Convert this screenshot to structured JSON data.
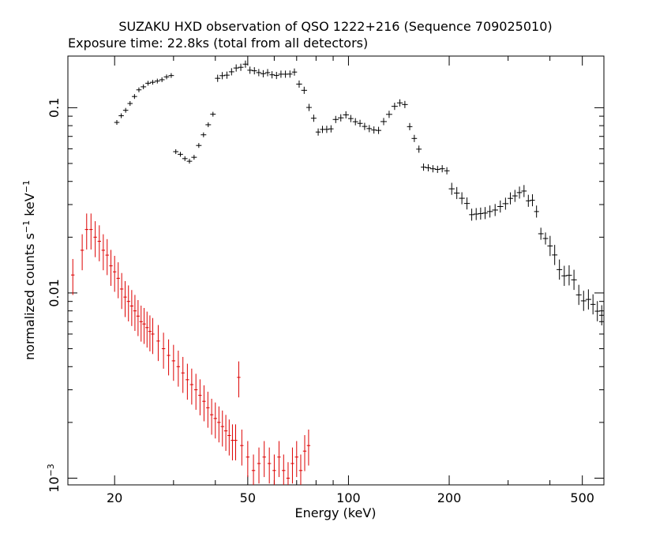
{
  "chart_data": {
    "type": "scatter",
    "title": "SUZAKU HXD observation of QSO 1222+216 (Sequence 709025010)",
    "subtitle": "Exposure time: 22.8ks (total from all detectors)",
    "xlabel": "Energy (keV)",
    "ylabel": "normalized counts s",
    "ylabel_sup1": "−1",
    "ylabel_mid": " keV",
    "ylabel_sup2": "−1",
    "x_scale": "log",
    "y_scale": "log",
    "xlim": [
      14.5,
      580
    ],
    "ylim": [
      0.00092,
      0.19
    ],
    "x_ticks_major": [
      20,
      50,
      100,
      200,
      500
    ],
    "x_tick_labels": [
      "20",
      "50",
      "100",
      "200",
      "500"
    ],
    "y_tick_labels": [
      {
        "value": 0.1,
        "base": "0.1",
        "sup": ""
      },
      {
        "value": 0.01,
        "base": "0.01",
        "sup": ""
      },
      {
        "value": 0.001,
        "base": "10",
        "sup": "−3"
      }
    ],
    "grid": false,
    "legend": "none",
    "series": [
      {
        "color": "#000000",
        "segments": [
          {
            "x": [
              20,
              24
            ],
            "y": [
              0.08,
              0.13
            ]
          },
          {
            "x": [
              24,
              30
            ],
            "y": [
              0.13,
              0.15
            ]
          },
          {
            "x": [
              30,
              34
            ],
            "y": [
              0.06,
              0.05
            ]
          },
          {
            "x": [
              34,
              40
            ],
            "y": [
              0.051,
              0.1
            ]
          },
          {
            "x": [
              40,
              50
            ],
            "y": [
              0.14,
              0.175
            ]
          },
          {
            "x": [
              50,
              60
            ],
            "y": [
              0.16,
              0.15
            ]
          },
          {
            "x": [
              60,
              70
            ],
            "y": [
              0.15,
              0.155
            ]
          },
          {
            "x": [
              70,
              75
            ],
            "y": [
              0.14,
              0.12
            ]
          },
          {
            "x": [
              75,
              80
            ],
            "y": [
              0.11,
              0.08
            ]
          },
          {
            "x": [
              80,
              90
            ],
            "y": [
              0.074,
              0.078
            ]
          },
          {
            "x": [
              90,
              100
            ],
            "y": [
              0.085,
              0.092
            ]
          },
          {
            "x": [
              100,
              110
            ],
            "y": [
              0.088,
              0.082
            ]
          },
          {
            "x": [
              110,
              125
            ],
            "y": [
              0.08,
              0.075
            ]
          },
          {
            "x": [
              125,
              140
            ],
            "y": [
              0.08,
              0.105
            ]
          },
          {
            "x": [
              140,
              150
            ],
            "y": [
              0.108,
              0.103
            ]
          },
          {
            "x": [
              150,
              165
            ],
            "y": [
              0.085,
              0.055
            ]
          },
          {
            "x": [
              165,
              200
            ],
            "y": [
              0.048,
              0.046
            ]
          },
          {
            "x": [
              200,
              230
            ],
            "y": [
              0.038,
              0.029
            ]
          },
          {
            "x": [
              230,
              260
            ],
            "y": [
              0.026,
              0.027
            ]
          },
          {
            "x": [
              260,
              300
            ],
            "y": [
              0.027,
              0.031
            ]
          },
          {
            "x": [
              300,
              340
            ],
            "y": [
              0.033,
              0.035
            ]
          },
          {
            "x": [
              340,
              370
            ],
            "y": [
              0.033,
              0.028
            ]
          },
          {
            "x": [
              370,
              420
            ],
            "y": [
              0.022,
              0.016
            ]
          },
          {
            "x": [
              420,
              480
            ],
            "y": [
              0.013,
              0.0115
            ]
          },
          {
            "x": [
              480,
              530
            ],
            "y": [
              0.01,
              0.0088
            ]
          },
          {
            "x": [
              530,
              580
            ],
            "y": [
              0.0085,
              0.0078
            ]
          }
        ]
      },
      {
        "color": "#dd0000",
        "x": [
          15,
          16,
          16.5,
          17,
          17.5,
          18,
          18.5,
          19,
          19.5,
          20,
          20.5,
          21,
          21.5,
          22,
          22.5,
          23,
          23.5,
          24,
          24.5,
          25,
          25.5,
          26,
          27,
          28,
          29,
          30,
          31,
          32,
          33,
          34,
          35,
          36,
          37,
          38,
          39,
          40,
          41,
          42,
          43,
          44,
          45,
          46,
          47,
          48,
          50,
          52,
          54,
          56,
          58,
          60,
          62,
          64,
          66,
          68,
          70,
          72,
          74,
          76
        ],
        "y": [
          0.0125,
          0.017,
          0.022,
          0.022,
          0.02,
          0.019,
          0.017,
          0.016,
          0.014,
          0.013,
          0.012,
          0.0105,
          0.0095,
          0.009,
          0.0085,
          0.008,
          0.0075,
          0.007,
          0.0068,
          0.0065,
          0.0062,
          0.006,
          0.0055,
          0.005,
          0.0046,
          0.0043,
          0.004,
          0.0037,
          0.0034,
          0.0032,
          0.003,
          0.0028,
          0.0026,
          0.0024,
          0.0022,
          0.0021,
          0.002,
          0.0019,
          0.0018,
          0.0017,
          0.0016,
          0.0016,
          0.0035,
          0.0015,
          0.0013,
          0.0011,
          0.0012,
          0.0013,
          0.0012,
          0.0011,
          0.0013,
          0.0011,
          0.001,
          0.0012,
          0.0013,
          0.0011,
          0.0014,
          0.0015
        ],
        "yerr_frac": 0.22,
        "xerr_frac": 0.012
      }
    ]
  }
}
